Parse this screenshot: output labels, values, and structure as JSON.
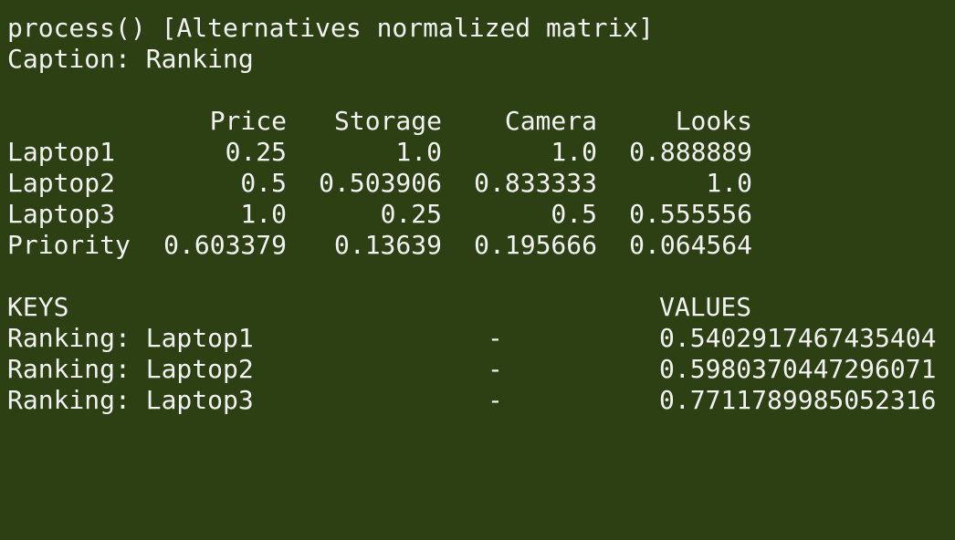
{
  "header": {
    "process_line": "process() [Alternatives normalized matrix]",
    "caption_line": "Caption: Ranking"
  },
  "matrix": {
    "columns": [
      "Price",
      "Storage",
      "Camera",
      "Looks"
    ],
    "rows": [
      {
        "label": "Laptop1",
        "values": [
          "0.25",
          "1.0",
          "1.0",
          "0.888889"
        ]
      },
      {
        "label": "Laptop2",
        "values": [
          "0.5",
          "0.503906",
          "0.833333",
          "1.0"
        ]
      },
      {
        "label": "Laptop3",
        "values": [
          "1.0",
          "0.25",
          "0.5",
          "0.555556"
        ]
      },
      {
        "label": "Priority",
        "values": [
          "0.603379",
          "0.13639",
          "0.195666",
          "0.064564"
        ]
      }
    ]
  },
  "ranking": {
    "keys_header": "KEYS",
    "values_header": "VALUES",
    "rows": [
      {
        "key": "Ranking: Laptop1",
        "sep": "-",
        "value": "0.5402917467435404"
      },
      {
        "key": "Ranking: Laptop2",
        "sep": "-",
        "value": "0.5980370447296071"
      },
      {
        "key": "Ranking: Laptop3",
        "sep": "-",
        "value": "0.7711789985052316"
      }
    ]
  }
}
